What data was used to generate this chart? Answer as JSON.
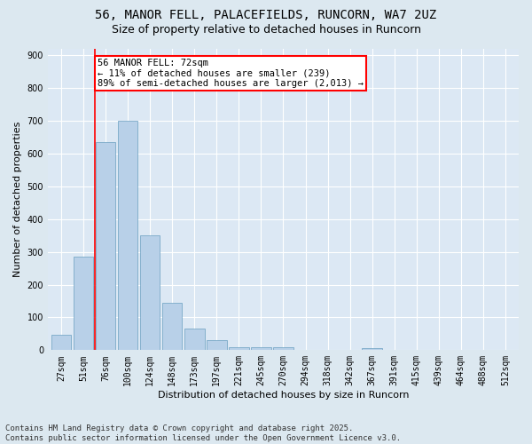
{
  "title_line1": "56, MANOR FELL, PALACEFIELDS, RUNCORN, WA7 2UZ",
  "title_line2": "Size of property relative to detached houses in Runcorn",
  "xlabel": "Distribution of detached houses by size in Runcorn",
  "ylabel": "Number of detached properties",
  "categories": [
    "27sqm",
    "51sqm",
    "76sqm",
    "100sqm",
    "124sqm",
    "148sqm",
    "173sqm",
    "197sqm",
    "221sqm",
    "245sqm",
    "270sqm",
    "294sqm",
    "318sqm",
    "342sqm",
    "367sqm",
    "391sqm",
    "415sqm",
    "439sqm",
    "464sqm",
    "488sqm",
    "512sqm"
  ],
  "values": [
    46,
    285,
    635,
    700,
    350,
    145,
    65,
    30,
    10,
    10,
    10,
    0,
    0,
    0,
    5,
    0,
    0,
    0,
    0,
    0,
    0
  ],
  "bar_color": "#b8d0e8",
  "bar_edge_color": "#6a9fc0",
  "vline_x_index": 1.5,
  "vline_color": "red",
  "annotation_text": "56 MANOR FELL: 72sqm\n← 11% of detached houses are smaller (239)\n89% of semi-detached houses are larger (2,013) →",
  "annotation_box_color": "white",
  "annotation_box_edge": "red",
  "ylim": [
    0,
    920
  ],
  "yticks": [
    0,
    100,
    200,
    300,
    400,
    500,
    600,
    700,
    800,
    900
  ],
  "footer_line1": "Contains HM Land Registry data © Crown copyright and database right 2025.",
  "footer_line2": "Contains public sector information licensed under the Open Government Licence v3.0.",
  "bg_color": "#dce8f0",
  "plot_bg_color": "#dce8f4",
  "title_fontsize": 10,
  "subtitle_fontsize": 9,
  "axis_label_fontsize": 8,
  "tick_fontsize": 7,
  "footer_fontsize": 6.5,
  "annotation_fontsize": 7.5
}
